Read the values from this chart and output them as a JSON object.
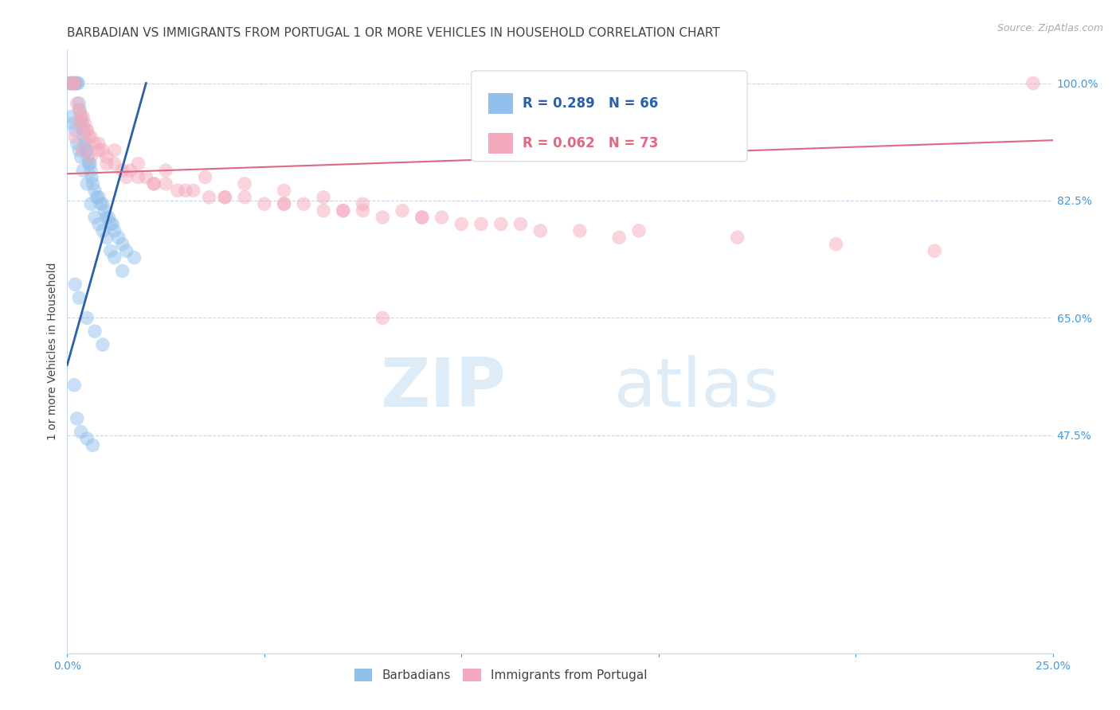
{
  "title": "BARBADIAN VS IMMIGRANTS FROM PORTUGAL 1 OR MORE VEHICLES IN HOUSEHOLD CORRELATION CHART",
  "source": "Source: ZipAtlas.com",
  "ylabel": "1 or more Vehicles in Household",
  "xlim": [
    0.0,
    25.0
  ],
  "ylim": [
    15.0,
    105.0
  ],
  "xticks": [
    0.0,
    5.0,
    10.0,
    15.0,
    20.0,
    25.0
  ],
  "yticks": [
    47.5,
    65.0,
    82.5,
    100.0
  ],
  "yticklabels": [
    "47.5%",
    "65.0%",
    "82.5%",
    "100.0%"
  ],
  "watermark_zip": "ZIP",
  "watermark_atlas": "atlas",
  "legend_blue_label": "R = 0.289   N = 66",
  "legend_pink_label": "R = 0.062   N = 73",
  "legend_blue_group": "Barbadians",
  "legend_pink_group": "Immigrants from Portugal",
  "blue_color": "#92C0EC",
  "blue_line_color": "#2B5FA8",
  "pink_color": "#F4AABC",
  "pink_line_color": "#E06880",
  "marker_size": 160,
  "marker_alpha": 0.5,
  "blue_scatter_x": [
    0.05,
    0.08,
    0.1,
    0.12,
    0.15,
    0.18,
    0.2,
    0.22,
    0.25,
    0.28,
    0.3,
    0.32,
    0.35,
    0.38,
    0.4,
    0.42,
    0.45,
    0.48,
    0.5,
    0.52,
    0.55,
    0.58,
    0.6,
    0.62,
    0.65,
    0.7,
    0.75,
    0.8,
    0.85,
    0.9,
    0.95,
    1.0,
    1.05,
    1.1,
    1.15,
    1.2,
    1.3,
    1.4,
    1.5,
    1.7,
    0.1,
    0.15,
    0.2,
    0.25,
    0.3,
    0.35,
    0.4,
    0.5,
    0.6,
    0.7,
    0.8,
    0.9,
    1.0,
    1.1,
    1.2,
    1.4,
    0.2,
    0.3,
    0.5,
    0.7,
    0.9,
    0.18,
    0.25,
    0.35,
    0.5,
    0.65
  ],
  "blue_scatter_y": [
    100.0,
    100.0,
    100.0,
    100.0,
    100.0,
    100.0,
    100.0,
    100.0,
    100.0,
    100.0,
    97.0,
    96.0,
    95.0,
    94.0,
    93.0,
    92.0,
    91.0,
    90.0,
    90.0,
    89.0,
    88.0,
    88.0,
    87.0,
    86.0,
    85.0,
    84.0,
    83.0,
    83.0,
    82.0,
    82.0,
    81.0,
    80.0,
    80.0,
    79.0,
    79.0,
    78.0,
    77.0,
    76.0,
    75.0,
    74.0,
    95.0,
    94.0,
    93.0,
    91.0,
    90.0,
    89.0,
    87.0,
    85.0,
    82.0,
    80.0,
    79.0,
    78.0,
    77.0,
    75.0,
    74.0,
    72.0,
    70.0,
    68.0,
    65.0,
    63.0,
    61.0,
    55.0,
    50.0,
    48.0,
    47.0,
    46.0
  ],
  "pink_scatter_x": [
    0.1,
    0.15,
    0.2,
    0.25,
    0.3,
    0.35,
    0.4,
    0.45,
    0.5,
    0.55,
    0.6,
    0.7,
    0.8,
    0.9,
    1.0,
    1.2,
    1.4,
    1.6,
    1.8,
    2.0,
    2.2,
    2.5,
    2.8,
    3.2,
    3.6,
    4.0,
    4.5,
    5.0,
    5.5,
    6.0,
    6.5,
    7.0,
    7.5,
    8.0,
    9.0,
    10.0,
    11.0,
    12.0,
    13.0,
    14.0,
    0.3,
    0.5,
    0.8,
    1.2,
    1.8,
    2.5,
    3.5,
    4.5,
    5.5,
    6.5,
    7.5,
    8.5,
    9.5,
    10.5,
    0.2,
    0.4,
    0.6,
    1.0,
    1.5,
    2.2,
    3.0,
    4.0,
    5.5,
    7.0,
    9.0,
    11.5,
    14.5,
    17.0,
    19.5,
    22.0,
    24.5,
    8.0,
    16.0
  ],
  "pink_scatter_y": [
    100.0,
    100.0,
    100.0,
    97.0,
    96.0,
    95.0,
    95.0,
    94.0,
    93.0,
    92.0,
    92.0,
    91.0,
    90.0,
    90.0,
    89.0,
    88.0,
    87.0,
    87.0,
    86.0,
    86.0,
    85.0,
    85.0,
    84.0,
    84.0,
    83.0,
    83.0,
    83.0,
    82.0,
    82.0,
    82.0,
    81.0,
    81.0,
    81.0,
    80.0,
    80.0,
    79.0,
    79.0,
    78.0,
    78.0,
    77.0,
    94.0,
    93.0,
    91.0,
    90.0,
    88.0,
    87.0,
    86.0,
    85.0,
    84.0,
    83.0,
    82.0,
    81.0,
    80.0,
    79.0,
    92.0,
    90.0,
    89.0,
    88.0,
    86.0,
    85.0,
    84.0,
    83.0,
    82.0,
    81.0,
    80.0,
    79.0,
    78.0,
    77.0,
    76.0,
    75.0,
    100.0,
    65.0,
    92.0
  ],
  "blue_trendline_x": [
    0.0,
    2.0
  ],
  "blue_trendline_y": [
    58.0,
    100.0
  ],
  "pink_trendline_x": [
    0.0,
    25.0
  ],
  "pink_trendline_y": [
    86.5,
    91.5
  ],
  "background_color": "#ffffff",
  "grid_color": "#c8d8e8",
  "axis_color": "#c8d8e8",
  "tick_color": "#4499dd",
  "title_color": "#444444",
  "ylabel_color": "#444444",
  "title_fontsize": 11,
  "source_fontsize": 9,
  "tick_fontsize": 10,
  "ylabel_fontsize": 10
}
